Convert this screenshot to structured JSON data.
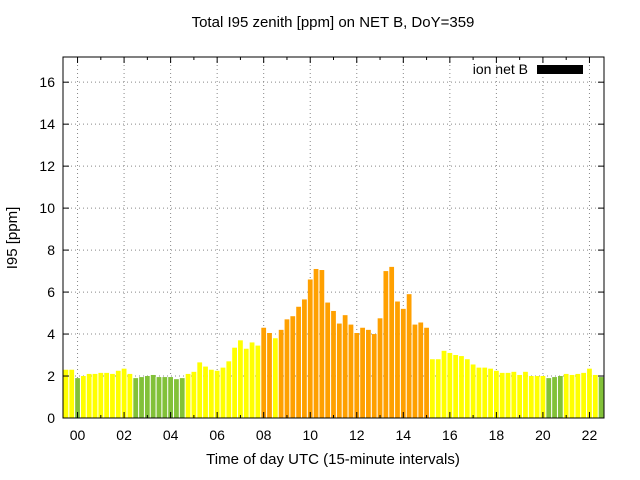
{
  "title": "Total I95 zenith [ppm] on NET B, DoY=359",
  "axes": {
    "xlabel": "Time of day UTC (15-minute intervals)",
    "ylabel": "I95 [ppm]"
  },
  "legend": {
    "label": "ion net B",
    "swatch_color": "#000000",
    "position": "top-right"
  },
  "chart_data": {
    "type": "bar",
    "title": "Total I95 zenith [ppm] on NET B, DoY=359",
    "xlabel": "Time of day UTC (15-minute intervals)",
    "ylabel": "I95 [ppm]",
    "grid": true,
    "interval_minutes": 15,
    "xlim_hours": [
      -0.625,
      22.625
    ],
    "ylim": [
      0,
      17.2
    ],
    "x_ticks": [
      "00",
      "02",
      "04",
      "06",
      "08",
      "10",
      "12",
      "14",
      "16",
      "18",
      "20",
      "22"
    ],
    "x_tick_hours": [
      0,
      2,
      4,
      6,
      8,
      10,
      12,
      14,
      16,
      18,
      20,
      22
    ],
    "x_minor_tick_step_hours": 1,
    "y_ticks": [
      0,
      2,
      4,
      6,
      8,
      10,
      12,
      14,
      16
    ],
    "colors": {
      "y": "#ffff00",
      "g": "#82c139",
      "o": "#ffa000",
      "grid": "#888888",
      "axis": "#000000",
      "legend_swatch": "#000000"
    },
    "series": [
      {
        "name": "ion net B",
        "points": [
          [
            -0.5,
            2.3,
            "y"
          ],
          [
            -0.25,
            2.3,
            "y"
          ],
          [
            0,
            1.9,
            "g"
          ],
          [
            0.25,
            2.0,
            "y"
          ],
          [
            0.5,
            2.1,
            "y"
          ],
          [
            0.75,
            2.1,
            "y"
          ],
          [
            1,
            2.15,
            "y"
          ],
          [
            1.25,
            2.15,
            "y"
          ],
          [
            1.5,
            2.1,
            "y"
          ],
          [
            1.75,
            2.25,
            "y"
          ],
          [
            2,
            2.35,
            "y"
          ],
          [
            2.25,
            2.1,
            "y"
          ],
          [
            2.5,
            1.9,
            "g"
          ],
          [
            2.75,
            1.95,
            "g"
          ],
          [
            3,
            2.0,
            "g"
          ],
          [
            3.25,
            2.05,
            "g"
          ],
          [
            3.5,
            1.95,
            "g"
          ],
          [
            3.75,
            1.95,
            "g"
          ],
          [
            4,
            1.95,
            "g"
          ],
          [
            4.25,
            1.85,
            "g"
          ],
          [
            4.5,
            1.9,
            "g"
          ],
          [
            4.75,
            2.1,
            "y"
          ],
          [
            5,
            2.2,
            "y"
          ],
          [
            5.25,
            2.65,
            "y"
          ],
          [
            5.5,
            2.45,
            "y"
          ],
          [
            5.75,
            2.3,
            "y"
          ],
          [
            6,
            2.25,
            "y"
          ],
          [
            6.25,
            2.4,
            "y"
          ],
          [
            6.5,
            2.7,
            "y"
          ],
          [
            6.75,
            3.35,
            "y"
          ],
          [
            7,
            3.7,
            "y"
          ],
          [
            7.25,
            3.3,
            "y"
          ],
          [
            7.5,
            3.6,
            "y"
          ],
          [
            7.75,
            3.45,
            "y"
          ],
          [
            8,
            4.3,
            "o"
          ],
          [
            8.25,
            4.05,
            "o"
          ],
          [
            8.5,
            3.8,
            "y"
          ],
          [
            8.75,
            4.2,
            "o"
          ],
          [
            9,
            4.7,
            "o"
          ],
          [
            9.25,
            4.85,
            "o"
          ],
          [
            9.5,
            5.3,
            "o"
          ],
          [
            9.75,
            5.65,
            "o"
          ],
          [
            10,
            6.6,
            "o"
          ],
          [
            10.25,
            7.1,
            "o"
          ],
          [
            10.5,
            7.05,
            "o"
          ],
          [
            10.75,
            5.5,
            "o"
          ],
          [
            11,
            5.1,
            "o"
          ],
          [
            11.25,
            4.5,
            "o"
          ],
          [
            11.5,
            4.9,
            "o"
          ],
          [
            11.75,
            4.45,
            "o"
          ],
          [
            12,
            4.05,
            "o"
          ],
          [
            12.25,
            4.3,
            "o"
          ],
          [
            12.5,
            4.2,
            "o"
          ],
          [
            12.75,
            4.0,
            "o"
          ],
          [
            13,
            4.75,
            "o"
          ],
          [
            13.25,
            7.0,
            "o"
          ],
          [
            13.5,
            7.2,
            "o"
          ],
          [
            13.75,
            5.55,
            "o"
          ],
          [
            14,
            5.2,
            "o"
          ],
          [
            14.25,
            5.9,
            "o"
          ],
          [
            14.5,
            4.45,
            "o"
          ],
          [
            14.75,
            4.55,
            "o"
          ],
          [
            15,
            4.3,
            "o"
          ],
          [
            15.25,
            2.8,
            "y"
          ],
          [
            15.5,
            2.8,
            "y"
          ],
          [
            15.75,
            3.2,
            "y"
          ],
          [
            16,
            3.1,
            "y"
          ],
          [
            16.25,
            3.0,
            "y"
          ],
          [
            16.5,
            2.95,
            "y"
          ],
          [
            16.75,
            2.8,
            "y"
          ],
          [
            17,
            2.55,
            "y"
          ],
          [
            17.25,
            2.4,
            "y"
          ],
          [
            17.5,
            2.4,
            "y"
          ],
          [
            17.75,
            2.35,
            "y"
          ],
          [
            18,
            2.25,
            "y"
          ],
          [
            18.25,
            2.15,
            "y"
          ],
          [
            18.5,
            2.15,
            "y"
          ],
          [
            18.75,
            2.2,
            "y"
          ],
          [
            19,
            2.05,
            "y"
          ],
          [
            19.25,
            2.2,
            "y"
          ],
          [
            19.5,
            2.0,
            "y"
          ],
          [
            19.75,
            2.0,
            "y"
          ],
          [
            20,
            2.0,
            "y"
          ],
          [
            20.25,
            1.9,
            "g"
          ],
          [
            20.5,
            1.95,
            "g"
          ],
          [
            20.75,
            2.0,
            "g"
          ],
          [
            21,
            2.1,
            "y"
          ],
          [
            21.25,
            2.05,
            "y"
          ],
          [
            21.5,
            2.1,
            "y"
          ],
          [
            21.75,
            2.15,
            "y"
          ],
          [
            22,
            2.35,
            "y"
          ],
          [
            22.25,
            2.05,
            "y"
          ],
          [
            22.5,
            1.95,
            "g"
          ]
        ]
      }
    ],
    "legend": {
      "label": "ion net B",
      "position": "top-right"
    }
  }
}
